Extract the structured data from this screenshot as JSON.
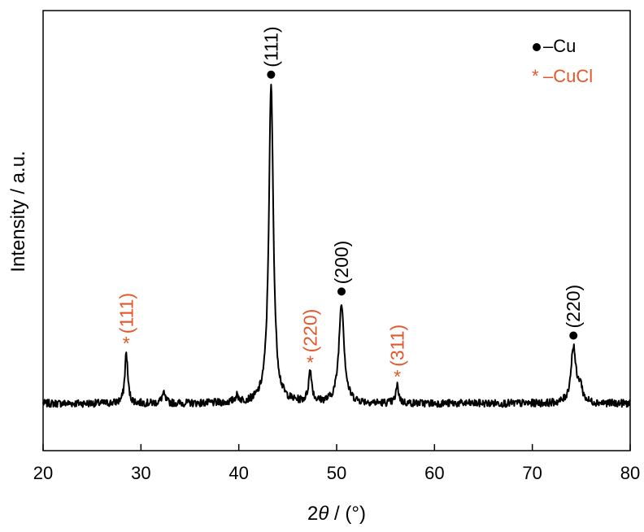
{
  "chart_data": {
    "type": "line",
    "title": "",
    "xlabel_parts": {
      "prefix": "2",
      "theta": "θ",
      "suffix": " / (°)"
    },
    "ylabel": "Intensity / a.u.",
    "xlim": [
      20,
      80
    ],
    "ylim": [
      -0.15,
      1.25
    ],
    "xticks": [
      "20",
      "30",
      "40",
      "50",
      "60",
      "70",
      "80"
    ],
    "legend": {
      "position": "top-right",
      "entries": [
        {
          "marker": "dot",
          "label": "Cu",
          "color": "#000000"
        },
        {
          "marker": "asterisk",
          "label": "CuCl",
          "color": "#e2572b"
        }
      ]
    },
    "peaks": [
      {
        "x": 28.5,
        "y": 0.16,
        "width": 0.18,
        "phase": "CuCl",
        "label": "(111)",
        "marker": "asterisk",
        "color": "#e2572b"
      },
      {
        "x": 32.3,
        "y": 0.03,
        "width": 0.22,
        "phase": "",
        "label": "",
        "marker": "",
        "color": ""
      },
      {
        "x": 39.8,
        "y": 0.02,
        "width": 0.25,
        "phase": "",
        "label": "",
        "marker": "",
        "color": ""
      },
      {
        "x": 43.3,
        "y": 1.01,
        "width": 0.28,
        "phase": "Cu",
        "label": "(111)",
        "marker": "dot",
        "color": "#000000"
      },
      {
        "x": 47.3,
        "y": 0.1,
        "width": 0.2,
        "phase": "CuCl",
        "label": "(220)",
        "marker": "asterisk",
        "color": "#e2572b"
      },
      {
        "x": 50.5,
        "y": 0.32,
        "width": 0.32,
        "phase": "Cu",
        "label": "(200)",
        "marker": "dot",
        "color": "#000000"
      },
      {
        "x": 56.2,
        "y": 0.055,
        "width": 0.18,
        "phase": "CuCl",
        "label": "(311)",
        "marker": "asterisk",
        "color": "#e2572b"
      },
      {
        "x": 74.2,
        "y": 0.18,
        "width": 0.3,
        "phase": "Cu",
        "label": "(220)",
        "marker": "dot",
        "color": "#000000"
      },
      {
        "x": 74.9,
        "y": 0.05,
        "width": 0.25,
        "phase": "",
        "label": "",
        "marker": "",
        "color": ""
      }
    ],
    "noise_amplitude": 0.012,
    "grid": false,
    "colors": {
      "line": "#000000",
      "accent": "#e2572b"
    }
  }
}
